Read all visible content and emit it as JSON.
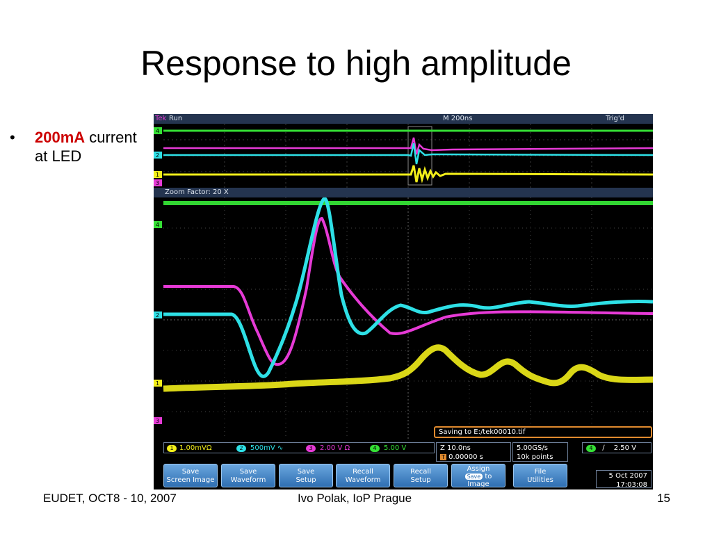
{
  "slide": {
    "title": "Response to high amplitude",
    "bullet_highlight": "200mA",
    "bullet_text": "current at LED",
    "footer_left": "EUDET, OCT8 - 10, 2007",
    "footer_center": "Ivo Polak, IoP Prague",
    "footer_right": "15"
  },
  "scope": {
    "brand": "Tek",
    "status": "Run",
    "timebase": "M 200ns",
    "trigger_status": "Trig'd",
    "zoom_label": "Zoom Factor: 20 X",
    "saving_message": "Saving to E:/tek00010.tif",
    "channels": [
      {
        "num": "1",
        "scale": "1.00mVΩ",
        "color": "#f2ee1a"
      },
      {
        "num": "2",
        "scale": "500mV ∿",
        "color": "#2ee0e6"
      },
      {
        "num": "3",
        "scale": "2.00 V Ω",
        "color": "#e63ad6"
      },
      {
        "num": "4",
        "scale": "5.00 V",
        "color": "#35e035"
      }
    ],
    "zoom_time": "Z 10.0ns",
    "trigger_pos": "0.00000 s",
    "sample_rate": "5.00GS/s",
    "record_length": "10k points",
    "trigger_channel": "4",
    "trigger_slope": "∕",
    "trigger_level": "2.50 V",
    "date": "5 Oct 2007",
    "time": "17:03:08",
    "buttons": {
      "save_screen_image": [
        "Save",
        "Screen Image"
      ],
      "save_waveform": [
        "Save",
        "Waveform"
      ],
      "save_setup": [
        "Save",
        "Setup"
      ],
      "recall_waveform": [
        "Recall",
        "Waveform"
      ],
      "recall_setup": [
        "Recall",
        "Setup"
      ],
      "assign_save": [
        "Assign",
        "Save",
        "to",
        "Image"
      ],
      "file_utilities": [
        "File",
        "Utilities"
      ]
    },
    "colors": {
      "ch1": "#f2ee1a",
      "ch2": "#2ee0e6",
      "ch3": "#e63ad6",
      "ch4": "#35e035",
      "bar": "#24344f",
      "grid": "#5a5a5a"
    }
  }
}
